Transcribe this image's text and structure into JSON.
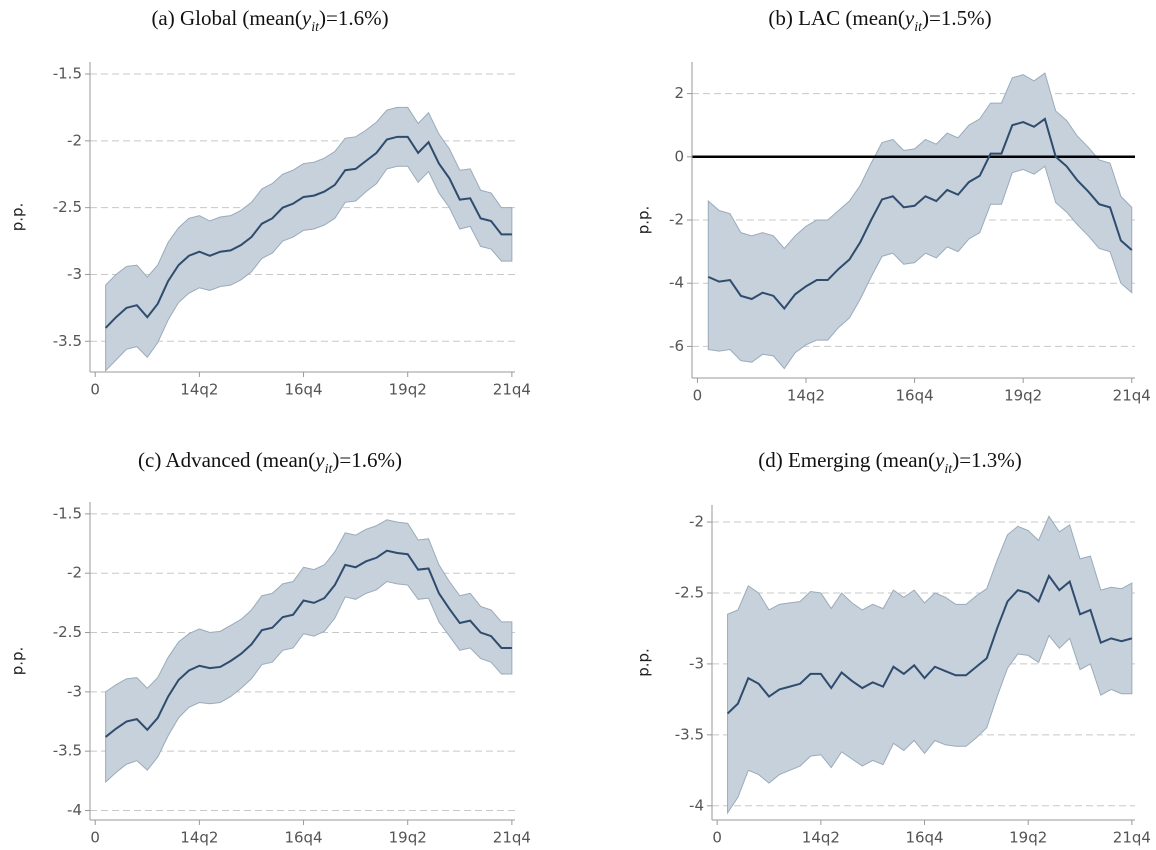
{
  "chart_data": [
    {
      "type": "line",
      "title": [
        "(a) Global (mean(",
        "y",
        "it",
        ")=1.6%)"
      ],
      "ylabel": "p.p.",
      "x": [
        1,
        2,
        3,
        4,
        5,
        6,
        7,
        8,
        9,
        10,
        11,
        12,
        13,
        14,
        15,
        16,
        17,
        18,
        19,
        20,
        21,
        22,
        23,
        24,
        25,
        26,
        27,
        28,
        29,
        30,
        31,
        32,
        33,
        34,
        35,
        36,
        37,
        38,
        39,
        40
      ],
      "values": [
        -3.4,
        -3.32,
        -3.25,
        -3.23,
        -3.32,
        -3.22,
        -3.05,
        -2.93,
        -2.86,
        -2.83,
        -2.86,
        -2.83,
        -2.82,
        -2.78,
        -2.72,
        -2.62,
        -2.58,
        -2.5,
        -2.47,
        -2.42,
        -2.41,
        -2.38,
        -2.33,
        -2.22,
        -2.21,
        -2.15,
        -2.09,
        -1.99,
        -1.97,
        -1.97,
        -2.09,
        -2.01,
        -2.17,
        -2.28,
        -2.44,
        -2.43,
        -2.58,
        -2.6,
        -2.7,
        -2.7
      ],
      "upper": [
        -3.08,
        -3.0,
        -2.94,
        -2.93,
        -3.02,
        -2.93,
        -2.76,
        -2.65,
        -2.58,
        -2.56,
        -2.6,
        -2.57,
        -2.56,
        -2.52,
        -2.46,
        -2.36,
        -2.32,
        -2.25,
        -2.22,
        -2.17,
        -2.16,
        -2.13,
        -2.08,
        -1.98,
        -1.97,
        -1.92,
        -1.86,
        -1.77,
        -1.75,
        -1.75,
        -1.87,
        -1.79,
        -1.95,
        -2.06,
        -2.22,
        -2.21,
        -2.37,
        -2.39,
        -2.5,
        -2.5
      ],
      "lower": [
        -3.72,
        -3.64,
        -3.56,
        -3.54,
        -3.62,
        -3.51,
        -3.34,
        -3.21,
        -3.14,
        -3.1,
        -3.12,
        -3.09,
        -3.08,
        -3.04,
        -2.98,
        -2.88,
        -2.84,
        -2.75,
        -2.72,
        -2.67,
        -2.66,
        -2.63,
        -2.58,
        -2.46,
        -2.45,
        -2.38,
        -2.32,
        -2.21,
        -2.19,
        -2.19,
        -2.31,
        -2.23,
        -2.39,
        -2.5,
        -2.66,
        -2.64,
        -2.79,
        -2.81,
        -2.9,
        -2.9
      ],
      "color": "#2f4b6e",
      "band_color": "#c6d1db",
      "band_edge": "#9aabba",
      "xlim": [
        -0.5,
        40.3
      ],
      "xticks": [
        0,
        {
          "value": 10,
          "label": "14q2"
        },
        {
          "value": 20,
          "label": "16q4"
        },
        {
          "value": 30,
          "label": "19q2"
        },
        {
          "value": 40,
          "label": "21q4"
        }
      ],
      "ylim": [
        -3.73,
        -1.41
      ],
      "yticks": [
        -3.5,
        -3,
        -2.5,
        -2,
        -1.5
      ],
      "grid": true
    },
    {
      "type": "line",
      "title": [
        "(b) LAC (mean(",
        "y",
        "it",
        ")=1.5%)"
      ],
      "ylabel": "p.p.",
      "x": [
        1,
        2,
        3,
        4,
        5,
        6,
        7,
        8,
        9,
        10,
        11,
        12,
        13,
        14,
        15,
        16,
        17,
        18,
        19,
        20,
        21,
        22,
        23,
        24,
        25,
        26,
        27,
        28,
        29,
        30,
        31,
        32,
        33,
        34,
        35,
        36,
        37,
        38,
        39,
        40
      ],
      "values": [
        -3.8,
        -3.95,
        -3.9,
        -4.4,
        -4.5,
        -4.3,
        -4.4,
        -4.8,
        -4.35,
        -4.1,
        -3.9,
        -3.9,
        -3.55,
        -3.25,
        -2.7,
        -2.0,
        -1.35,
        -1.25,
        -1.6,
        -1.55,
        -1.25,
        -1.4,
        -1.05,
        -1.2,
        -0.8,
        -0.6,
        0.1,
        0.1,
        1.0,
        1.1,
        0.95,
        1.2,
        0.0,
        -0.3,
        -0.75,
        -1.1,
        -1.5,
        -1.6,
        -2.65,
        -2.95
      ],
      "upper": [
        -1.4,
        -1.7,
        -1.8,
        -2.4,
        -2.5,
        -2.4,
        -2.5,
        -2.9,
        -2.5,
        -2.2,
        -2.0,
        -2.0,
        -1.7,
        -1.4,
        -0.9,
        -0.2,
        0.45,
        0.55,
        0.2,
        0.25,
        0.55,
        0.4,
        0.75,
        0.6,
        1.0,
        1.2,
        1.7,
        1.7,
        2.5,
        2.6,
        2.4,
        2.65,
        1.45,
        1.15,
        0.65,
        0.3,
        -0.1,
        -0.2,
        -1.25,
        -1.6
      ],
      "lower": [
        -6.1,
        -6.15,
        -6.1,
        -6.45,
        -6.5,
        -6.25,
        -6.3,
        -6.7,
        -6.2,
        -5.95,
        -5.8,
        -5.8,
        -5.4,
        -5.1,
        -4.5,
        -3.8,
        -3.15,
        -3.05,
        -3.4,
        -3.35,
        -3.05,
        -3.2,
        -2.85,
        -3.0,
        -2.6,
        -2.4,
        -1.5,
        -1.5,
        -0.5,
        -0.4,
        -0.55,
        -0.3,
        -1.45,
        -1.75,
        -2.15,
        -2.5,
        -2.9,
        -3.0,
        -4.0,
        -4.3
      ],
      "color": "#2f4b6e",
      "band_color": "#c6d1db",
      "band_edge": "#9aabba",
      "xlim": [
        -0.5,
        40.3
      ],
      "xticks": [
        0,
        {
          "value": 10,
          "label": "14q2"
        },
        {
          "value": 20,
          "label": "16q4"
        },
        {
          "value": 30,
          "label": "19q2"
        },
        {
          "value": 40,
          "label": "21q4"
        }
      ],
      "ylim": [
        -7,
        3
      ],
      "yticks": [
        -6,
        -4,
        -2,
        0,
        2
      ],
      "grid": true,
      "hline": 0,
      "hline_color": "#000000"
    },
    {
      "type": "line",
      "title": [
        "(c) Advanced (mean(",
        "y",
        "it",
        ")=1.6%)"
      ],
      "ylabel": "p.p.",
      "x": [
        1,
        2,
        3,
        4,
        5,
        6,
        7,
        8,
        9,
        10,
        11,
        12,
        13,
        14,
        15,
        16,
        17,
        18,
        19,
        20,
        21,
        22,
        23,
        24,
        25,
        26,
        27,
        28,
        29,
        30,
        31,
        32,
        33,
        34,
        35,
        36,
        37,
        38,
        39,
        40
      ],
      "values": [
        -3.38,
        -3.31,
        -3.25,
        -3.23,
        -3.32,
        -3.22,
        -3.04,
        -2.9,
        -2.82,
        -2.78,
        -2.8,
        -2.79,
        -2.74,
        -2.68,
        -2.6,
        -2.48,
        -2.46,
        -2.37,
        -2.35,
        -2.23,
        -2.25,
        -2.21,
        -2.1,
        -1.93,
        -1.95,
        -1.9,
        -1.87,
        -1.81,
        -1.83,
        -1.84,
        -1.97,
        -1.96,
        -2.17,
        -2.3,
        -2.42,
        -2.4,
        -2.5,
        -2.53,
        -2.63,
        -2.63
      ],
      "upper": [
        -3.0,
        -2.94,
        -2.89,
        -2.88,
        -2.97,
        -2.88,
        -2.71,
        -2.58,
        -2.51,
        -2.47,
        -2.5,
        -2.49,
        -2.44,
        -2.39,
        -2.31,
        -2.19,
        -2.17,
        -2.09,
        -2.07,
        -1.95,
        -1.97,
        -1.93,
        -1.82,
        -1.66,
        -1.68,
        -1.63,
        -1.6,
        -1.55,
        -1.57,
        -1.58,
        -1.72,
        -1.71,
        -1.93,
        -2.07,
        -2.19,
        -2.17,
        -2.28,
        -2.31,
        -2.41,
        -2.41
      ],
      "lower": [
        -3.76,
        -3.68,
        -3.61,
        -3.58,
        -3.66,
        -3.55,
        -3.37,
        -3.22,
        -3.13,
        -3.09,
        -3.1,
        -3.09,
        -3.04,
        -2.97,
        -2.89,
        -2.77,
        -2.75,
        -2.65,
        -2.63,
        -2.51,
        -2.53,
        -2.49,
        -2.38,
        -2.2,
        -2.22,
        -2.17,
        -2.14,
        -2.07,
        -2.09,
        -2.1,
        -2.22,
        -2.21,
        -2.41,
        -2.53,
        -2.65,
        -2.63,
        -2.72,
        -2.75,
        -2.85,
        -2.85
      ],
      "color": "#2f4b6e",
      "band_color": "#c6d1db",
      "band_edge": "#9aabba",
      "xlim": [
        -0.5,
        40.3
      ],
      "xticks": [
        0,
        {
          "value": 10,
          "label": "14q2"
        },
        {
          "value": 20,
          "label": "16q4"
        },
        {
          "value": 30,
          "label": "19q2"
        },
        {
          "value": 40,
          "label": "21q4"
        }
      ],
      "ylim": [
        -4.08,
        -1.4
      ],
      "yticks": [
        -4,
        -3.5,
        -3,
        -2.5,
        -2,
        -1.5
      ],
      "grid": true
    },
    {
      "type": "line",
      "title": [
        "(d) Emerging (mean(",
        "y",
        "it",
        ")=1.3%)"
      ],
      "ylabel": "p.p.",
      "x": [
        1,
        2,
        3,
        4,
        5,
        6,
        7,
        8,
        9,
        10,
        11,
        12,
        13,
        14,
        15,
        16,
        17,
        18,
        19,
        20,
        21,
        22,
        23,
        24,
        25,
        26,
        27,
        28,
        29,
        30,
        31,
        32,
        33,
        34,
        35,
        36,
        37,
        38,
        39,
        40
      ],
      "values": [
        -3.35,
        -3.28,
        -3.1,
        -3.14,
        -3.23,
        -3.18,
        -3.16,
        -3.14,
        -3.07,
        -3.07,
        -3.17,
        -3.06,
        -3.12,
        -3.17,
        -3.13,
        -3.16,
        -3.02,
        -3.07,
        -3.01,
        -3.1,
        -3.02,
        -3.05,
        -3.08,
        -3.08,
        -3.02,
        -2.96,
        -2.75,
        -2.56,
        -2.48,
        -2.5,
        -2.56,
        -2.38,
        -2.48,
        -2.42,
        -2.65,
        -2.62,
        -2.85,
        -2.82,
        -2.84,
        -2.82
      ],
      "upper": [
        -2.65,
        -2.62,
        -2.45,
        -2.5,
        -2.62,
        -2.58,
        -2.57,
        -2.56,
        -2.49,
        -2.5,
        -2.61,
        -2.5,
        -2.57,
        -2.62,
        -2.58,
        -2.61,
        -2.48,
        -2.53,
        -2.48,
        -2.57,
        -2.5,
        -2.53,
        -2.58,
        -2.58,
        -2.52,
        -2.47,
        -2.27,
        -2.09,
        -2.03,
        -2.06,
        -2.13,
        -1.96,
        -2.07,
        -2.02,
        -2.26,
        -2.24,
        -2.48,
        -2.46,
        -2.47,
        -2.43
      ],
      "lower": [
        -4.05,
        -3.94,
        -3.75,
        -3.78,
        -3.84,
        -3.78,
        -3.75,
        -3.72,
        -3.65,
        -3.64,
        -3.73,
        -3.62,
        -3.67,
        -3.72,
        -3.68,
        -3.71,
        -3.56,
        -3.61,
        -3.54,
        -3.63,
        -3.54,
        -3.57,
        -3.58,
        -3.58,
        -3.52,
        -3.45,
        -3.23,
        -3.03,
        -2.93,
        -2.94,
        -2.99,
        -2.8,
        -2.89,
        -2.82,
        -3.04,
        -3.0,
        -3.22,
        -3.18,
        -3.21,
        -3.21
      ],
      "color": "#2f4b6e",
      "band_color": "#c6d1db",
      "band_edge": "#9aabba",
      "xlim": [
        -0.5,
        40.3
      ],
      "xticks": [
        0,
        {
          "value": 10,
          "label": "14q2"
        },
        {
          "value": 20,
          "label": "16q4"
        },
        {
          "value": 30,
          "label": "19q2"
        },
        {
          "value": 40,
          "label": "21q4"
        }
      ],
      "ylim": [
        -4.1,
        -1.88
      ],
      "yticks": [
        -4,
        -3.5,
        -3,
        -2.5,
        -2
      ],
      "grid": true
    }
  ]
}
